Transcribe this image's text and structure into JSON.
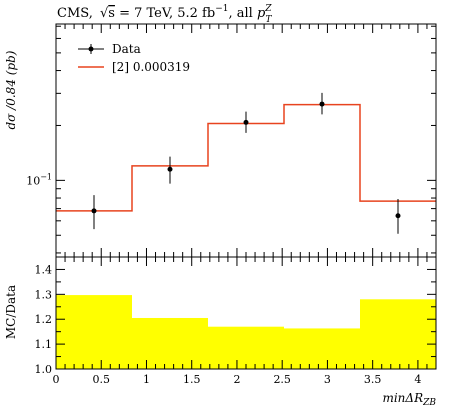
{
  "figure": {
    "title_prefix": "CMS,",
    "title_sqrt_s": "s",
    "title_energy": " = 7 TeV, 5.2 fb",
    "title_lumi_exp": "−1",
    "title_after_lumi": ", all ",
    "title_pt": "p",
    "title_pt_sup": "Z",
    "title_pt_sub": "T"
  },
  "chart_data": [
    {
      "panel": "main",
      "type": "line",
      "ylabel": "dσ /0.84 (pb)",
      "yscale": "log",
      "ylim": [
        0.038,
        0.72
      ],
      "xlim": [
        0,
        4.2
      ],
      "x_ticks": [
        0,
        0.5,
        1,
        1.5,
        2,
        2.5,
        3,
        3.5,
        4
      ],
      "y_tick_labels": [
        {
          "value": 0.1,
          "label": "10",
          "sup": "−1"
        }
      ],
      "legend": {
        "position": "top-left"
      },
      "bin_edges": [
        0,
        0.84,
        1.68,
        2.52,
        3.36,
        4.2
      ],
      "series": [
        {
          "name": "Data",
          "style": "points-with-errors",
          "color": "#000000",
          "x": [
            0.42,
            1.26,
            2.1,
            2.94,
            3.78
          ],
          "y": [
            0.068,
            0.115,
            0.208,
            0.262,
            0.064
          ],
          "y_low": [
            0.054,
            0.096,
            0.182,
            0.23,
            0.051
          ],
          "y_high": [
            0.083,
            0.135,
            0.238,
            0.302,
            0.079
          ]
        },
        {
          "name": "[2] 0.000319",
          "style": "step",
          "color": "#e8431f",
          "values": [
            0.068,
            0.12,
            0.205,
            0.26,
            0.077
          ]
        }
      ]
    },
    {
      "panel": "ratio",
      "type": "bar",
      "ylabel": "MC/Data",
      "xlabel": "minΔR",
      "xlabel_sub": "ZB",
      "ylim": [
        1.0,
        1.45
      ],
      "xlim": [
        0,
        4.2
      ],
      "y_ticks": [
        1.0,
        1.1,
        1.2,
        1.3,
        1.4
      ],
      "x_ticks": [
        0,
        0.5,
        1,
        1.5,
        2,
        2.5,
        3,
        3.5,
        4
      ],
      "bin_edges": [
        0,
        0.84,
        1.68,
        2.52,
        3.36,
        4.2
      ],
      "values": [
        1.297,
        1.205,
        1.17,
        1.163,
        1.28
      ],
      "fill_color": "#ffff00"
    }
  ]
}
